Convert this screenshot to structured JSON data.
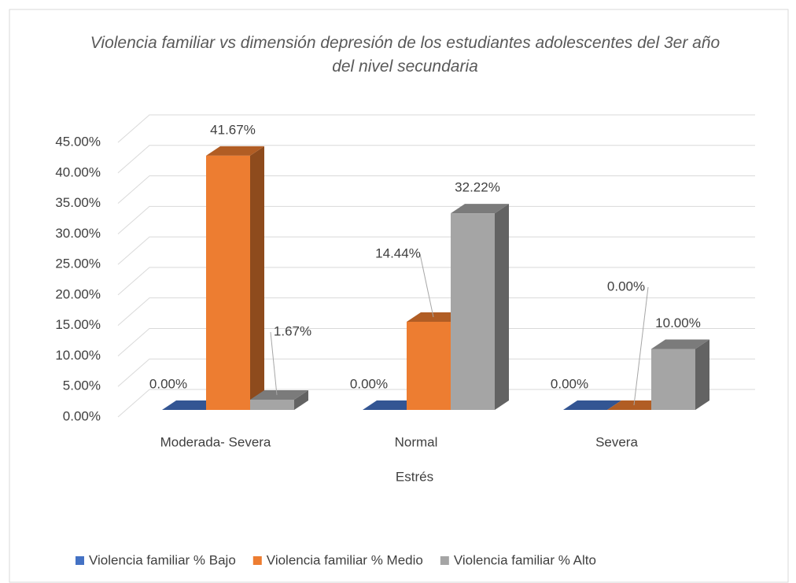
{
  "chart_data": {
    "type": "bar3d",
    "title": "Violencia familiar vs dimensión depresión de los estudiantes adolescentes del 3er año del nivel secundaria",
    "x_label": "Estrés",
    "categories": [
      "Moderada- Severa",
      "Normal",
      "Severa"
    ],
    "series": [
      {
        "name": "Violencia familiar % Bajo",
        "color": "#4472c4",
        "values": [
          0,
          0,
          0
        ],
        "value_labels": [
          "0.00%",
          "0.00%",
          "0.00%"
        ]
      },
      {
        "name": "Violencia familiar % Medio",
        "color": "#ed7d31",
        "values": [
          41.67,
          14.44,
          0
        ],
        "value_labels": [
          "41.67%",
          "14.44%",
          "0.00%"
        ]
      },
      {
        "name": "Violencia familiar % Alto",
        "color": "#a5a5a5",
        "values": [
          1.67,
          32.22,
          10
        ],
        "value_labels": [
          "1.67%",
          "32.22%",
          "10.00%"
        ]
      }
    ],
    "ylim": [
      0,
      45
    ],
    "yticks": [
      {
        "value": 0,
        "label": "0.00%"
      },
      {
        "value": 5,
        "label": "5.00%"
      },
      {
        "value": 10,
        "label": "10.00%"
      },
      {
        "value": 15,
        "label": "15.00%"
      },
      {
        "value": 20,
        "label": "20.00%"
      },
      {
        "value": 25,
        "label": "25.00%"
      },
      {
        "value": 30,
        "label": "30.00%"
      },
      {
        "value": 35,
        "label": "35.00%"
      },
      {
        "value": 40,
        "label": "40.00%"
      },
      {
        "value": 45,
        "label": "45.00%"
      }
    ],
    "grid": true,
    "legend": "bottom"
  }
}
